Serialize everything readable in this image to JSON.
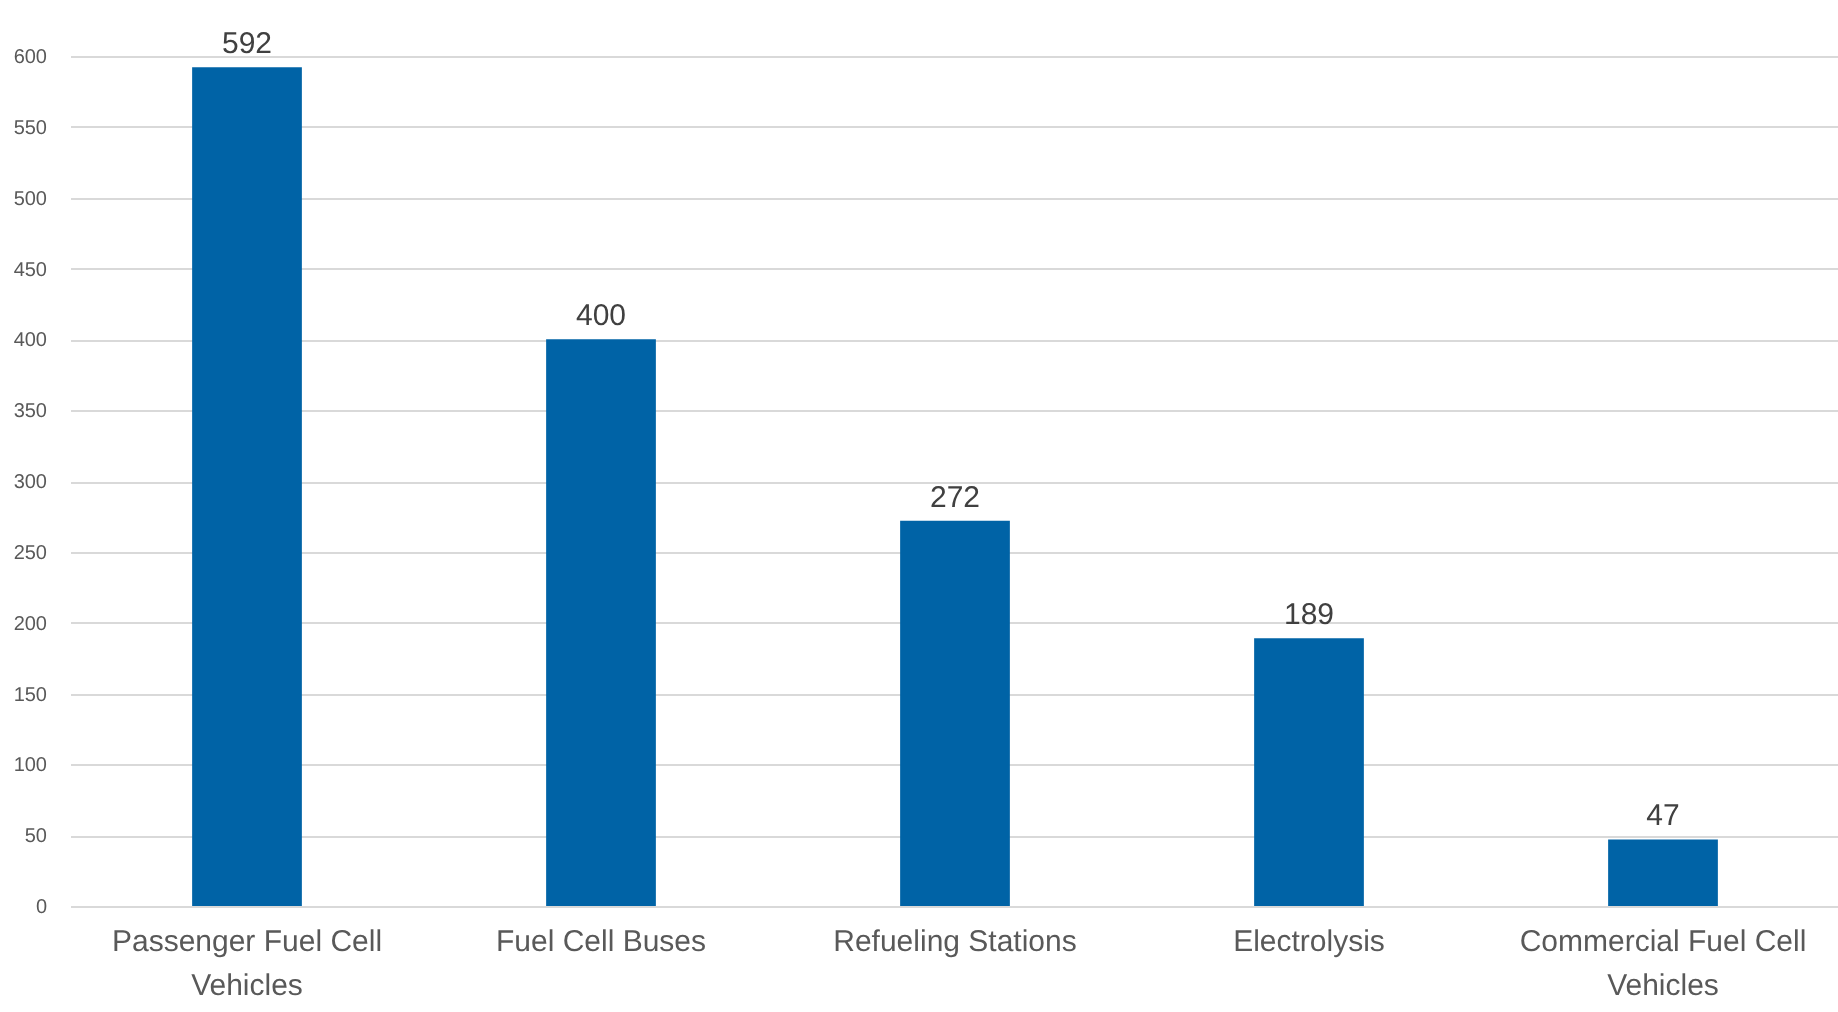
{
  "chart_data": {
    "type": "bar",
    "categories": [
      "Passenger Fuel Cell Vehicles",
      "Fuel Cell Buses",
      "Refueling Stations",
      "Electrolysis",
      "Commercial Fuel Cell Vehicles"
    ],
    "values": [
      592,
      400,
      272,
      189,
      47
    ],
    "color": "#0063a6",
    "ylim": [
      0,
      600
    ],
    "yticks": [
      0,
      50,
      100,
      150,
      200,
      250,
      300,
      350,
      400,
      450,
      500,
      550,
      600
    ],
    "grid": "y",
    "data_labels": true
  }
}
